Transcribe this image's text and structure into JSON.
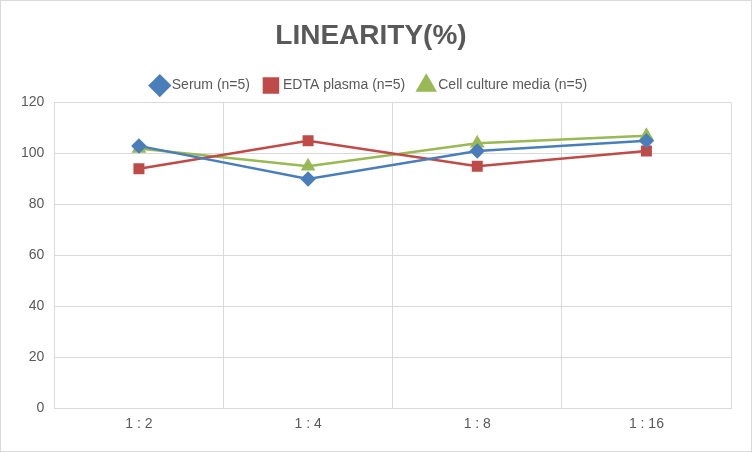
{
  "chart_data": {
    "type": "line",
    "title": "LINEARITY(%)",
    "categories": [
      "1 : 2",
      "1 : 4",
      "1 : 8",
      "1 : 16"
    ],
    "series": [
      {
        "name": "Serum (n=5)",
        "color": "#4a7ebb",
        "marker": "diamond",
        "values": [
          103,
          90,
          101,
          105
        ]
      },
      {
        "name": "EDTA plasma (n=5)",
        "color": "#be4b48",
        "marker": "square",
        "values": [
          94,
          105,
          95,
          101
        ]
      },
      {
        "name": "Cell culture media (n=5)",
        "color": "#98b954",
        "marker": "triangle",
        "values": [
          102,
          95,
          104,
          107
        ]
      }
    ],
    "ylim": [
      0,
      120
    ],
    "yticks": [
      0,
      20,
      40,
      60,
      80,
      100,
      120
    ],
    "grid": true,
    "legend": "top"
  }
}
